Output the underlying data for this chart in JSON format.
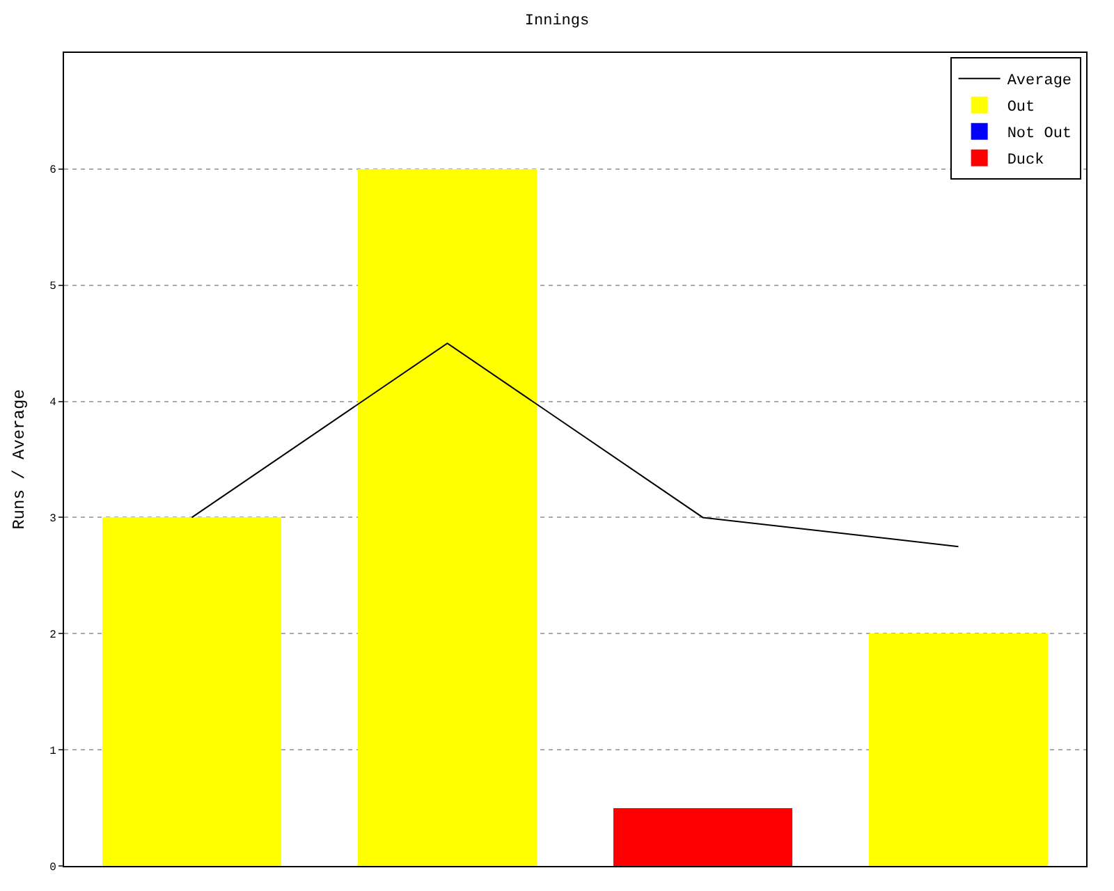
{
  "chart_data": {
    "type": "bar",
    "title": "Innings",
    "ylabel": "Runs / Average",
    "categories": [
      null,
      null,
      null,
      null
    ],
    "stacked": true,
    "ylim": [
      0,
      7
    ],
    "yticks": [
      0,
      1,
      2,
      3,
      4,
      5,
      6
    ],
    "grid": "y",
    "legend": "top right",
    "tick_labels": "y",
    "marker": "none",
    "series": [
      {
        "name": "Average",
        "type": "line",
        "color": "#000000",
        "values": [
          3,
          4.5,
          3,
          2.75
        ]
      },
      {
        "name": "Out",
        "color": "#ffff00",
        "values": [
          3,
          6,
          null,
          2
        ]
      },
      {
        "name": "Not Out",
        "color": "#0000ff",
        "values": [
          null,
          null,
          null,
          null
        ]
      },
      {
        "name": "Duck",
        "color": "#ff0000",
        "values": [
          null,
          null,
          0.5,
          null
        ]
      }
    ]
  }
}
